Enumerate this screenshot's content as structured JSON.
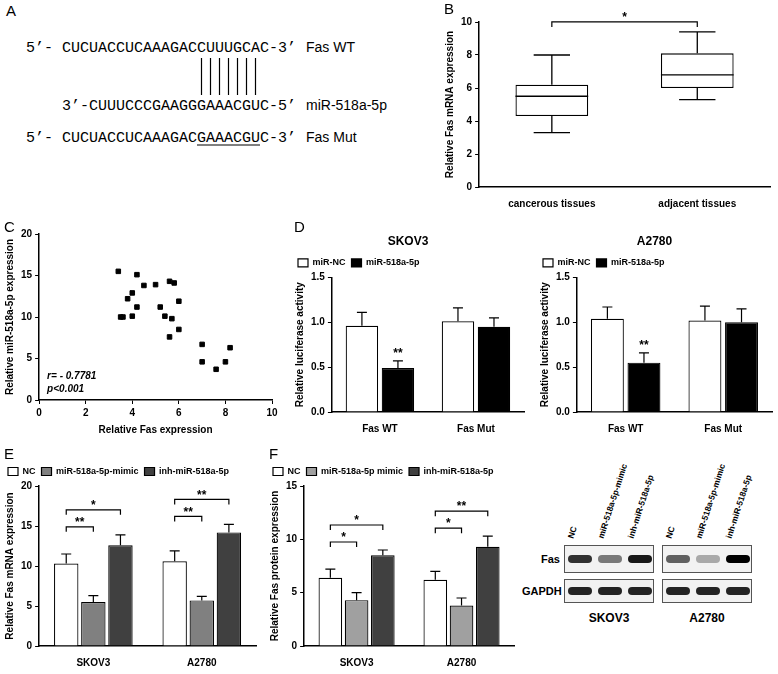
{
  "panel_a": {
    "panel": "A",
    "sequences": [
      {
        "text": "5’- CUCUACCUCAAAGACCUUUGCAC-3’",
        "label": "Fas WT"
      },
      {
        "text": "3’-CUUUCCCGAAGGGAAACGUC-5’",
        "label": "miR-518a-5p"
      },
      {
        "text": "5’- CUCUACCUCAAAGACGAAACGUC-3’",
        "label": "Fas Mut",
        "underlined": "GAAACGU"
      }
    ]
  },
  "chart_data": [
    {
      "panel": "B",
      "type": "box",
      "categories": [
        "cancerous tissues",
        "adjacent tissues"
      ],
      "boxes": [
        {
          "min": 3.3,
          "q1": 4.3,
          "median": 5.5,
          "q3": 6.2,
          "max": 8.0
        },
        {
          "min": 5.3,
          "q1": 6.0,
          "median": 6.8,
          "q3": 8.1,
          "max": 9.4
        }
      ],
      "color": "#ffffff",
      "y_label": "Relative Fas mRNA expression",
      "ylim": [
        0,
        10
      ],
      "yticks": [
        0,
        2,
        4,
        6,
        8,
        10
      ],
      "grid": false,
      "significance": [
        {
          "categories": [
            "cancerous tissues",
            "adjacent tissues"
          ],
          "label": "*"
        }
      ]
    },
    {
      "panel": "C",
      "type": "scatter",
      "x": [
        3.4,
        3.8,
        4.2,
        4.5,
        3.6,
        4.0,
        4.2,
        3.5,
        4.0,
        5.0,
        5.6,
        5.8,
        5.2,
        5.4,
        5.7,
        6.0,
        5.6,
        6.0,
        7.0,
        7.0,
        7.6,
        8.0,
        8.2
      ],
      "values": [
        15.5,
        12.2,
        15.1,
        13.8,
        10.0,
        12.9,
        11.2,
        10.0,
        10.1,
        13.9,
        14.3,
        14.1,
        11.2,
        10.1,
        9.8,
        11.9,
        7.6,
        8.5,
        6.7,
        4.6,
        3.7,
        4.6,
        6.3
      ],
      "color": "#000000",
      "marker": "square",
      "x_label": "Relative Fas expression",
      "y_label": "Relative miR-518a-5p expression",
      "xlim": [
        0,
        10
      ],
      "xticks": [
        0,
        2,
        4,
        6,
        8,
        10
      ],
      "ylim": [
        0,
        20
      ],
      "yticks": [
        0,
        5,
        10,
        15,
        20
      ],
      "grid": false,
      "annotations": [
        "r= - 0.7781",
        "p<0.001"
      ]
    },
    {
      "panel": "D",
      "type": "bar",
      "title": "SKOV3",
      "categories": [
        "Fas WT",
        "Fas Mut"
      ],
      "series": [
        {
          "name": "miR-NC",
          "color": "#ffffff",
          "values": [
            0.96,
            1.01
          ],
          "errors": [
            0.15,
            0.15
          ]
        },
        {
          "name": "miR-518a-5p",
          "color": "#000000",
          "values": [
            0.49,
            0.95
          ],
          "errors": [
            0.08,
            0.1
          ]
        }
      ],
      "y_label": "Relative luciferase activity",
      "ylim": [
        0,
        1.5
      ],
      "yticks": [
        {
          "value": 0,
          "label": "0.0"
        },
        0.5,
        {
          "value": 1,
          "label": "1.0"
        },
        1.5
      ],
      "grid": false,
      "legend": "top-left",
      "significance": [
        {
          "category": "Fas WT",
          "series": [
            "miR-518a-5p"
          ],
          "label": "**"
        }
      ]
    },
    {
      "type": "bar",
      "title": "A2780",
      "categories": [
        "Fas WT",
        "Fas Mut"
      ],
      "series": [
        {
          "name": "miR-NC",
          "color": "#ffffff",
          "values": [
            1.04,
            1.02
          ],
          "errors": [
            0.13,
            0.16
          ]
        },
        {
          "name": "miR-518a-5p",
          "color": "#000000",
          "values": [
            0.55,
            1.0
          ],
          "errors": [
            0.11,
            0.15
          ]
        }
      ],
      "y_label": "Relative luciferase activity",
      "ylim": [
        0,
        1.5
      ],
      "yticks": [
        {
          "value": 0,
          "label": "0.0"
        },
        0.5,
        {
          "value": 1,
          "label": "1.0"
        },
        1.5
      ],
      "grid": false,
      "legend": "top-left",
      "significance": [
        {
          "category": "Fas WT",
          "series": [
            "miR-518a-5p"
          ],
          "label": "**"
        }
      ]
    },
    {
      "panel": "E",
      "type": "bar",
      "categories": [
        "SKOV3",
        "A2780"
      ],
      "series": [
        {
          "name": "NC",
          "color": "#ffffff",
          "values": [
            10.3,
            10.6
          ],
          "errors": [
            1.2,
            1.3
          ]
        },
        {
          "name": "miR-518a-5p-mimic",
          "color": "#808080",
          "values": [
            5.5,
            5.7
          ],
          "errors": [
            0.8,
            0.5
          ]
        },
        {
          "name": "inh-miR-518a-5p",
          "color": "#404040",
          "values": [
            12.6,
            14.2
          ],
          "errors": [
            1.3,
            1.0
          ]
        }
      ],
      "y_label": "Relative Fas mRNA expression",
      "ylim": [
        0,
        20
      ],
      "yticks": [
        0,
        5,
        10,
        15,
        20
      ],
      "grid": false,
      "legend": "top-left",
      "significance": [
        {
          "category": "SKOV3",
          "series": [
            "NC",
            "miR-518a-5p-mimic"
          ],
          "label": "**"
        },
        {
          "category": "SKOV3",
          "series": [
            "NC",
            "inh-miR-518a-5p"
          ],
          "label": "*"
        },
        {
          "category": "A2780",
          "series": [
            "NC",
            "miR-518a-5p-mimic"
          ],
          "label": "**"
        },
        {
          "category": "A2780",
          "series": [
            "NC",
            "inh-miR-518a-5p"
          ],
          "label": "**"
        }
      ]
    },
    {
      "panel": "F",
      "type": "bar",
      "categories": [
        "SKOV3",
        "A2780"
      ],
      "series": [
        {
          "name": "NC",
          "color": "#ffffff",
          "values": [
            6.4,
            6.2
          ],
          "errors": [
            0.8,
            0.8
          ]
        },
        {
          "name": "miR-518a-5p mimic",
          "color": "#a0a0a0",
          "values": [
            4.3,
            3.8
          ],
          "errors": [
            0.7,
            0.7
          ]
        },
        {
          "name": "inh-miR-518a-5p",
          "color": "#404040",
          "values": [
            8.5,
            9.3
          ],
          "errors": [
            0.5,
            1.0
          ]
        }
      ],
      "y_label": "Relative Fas protein expression",
      "ylim": [
        0,
        15
      ],
      "yticks": [
        0,
        5,
        10,
        15
      ],
      "grid": false,
      "legend": "top-left",
      "significance": [
        {
          "category": "SKOV3",
          "series": [
            "NC",
            "miR-518a-5p mimic"
          ],
          "label": "*"
        },
        {
          "category": "SKOV3",
          "series": [
            "NC",
            "inh-miR-518a-5p"
          ],
          "label": "*"
        },
        {
          "category": "A2780",
          "series": [
            "NC",
            "miR-518a-5p mimic"
          ],
          "label": "*"
        },
        {
          "category": "A2780",
          "series": [
            "NC",
            "inh-miR-518a-5p"
          ],
          "label": "**"
        }
      ]
    }
  ],
  "blot": {
    "rows": [
      "Fas",
      "GAPDH"
    ],
    "panels": [
      {
        "cell_line": "SKOV3",
        "lanes": [
          "NC",
          "miR-518a-5p-mimic",
          "inh-miR-518a-5p"
        ],
        "band_intensity": [
          [
            0.8,
            0.5,
            0.9
          ],
          [
            0.85,
            0.85,
            0.85
          ]
        ]
      },
      {
        "cell_line": "A2780",
        "lanes": [
          "NC",
          "miR-518a-5p-mimic",
          "inh-miR-518a-5p"
        ],
        "band_intensity": [
          [
            0.6,
            0.3,
            1.0
          ],
          [
            0.85,
            0.85,
            0.85
          ]
        ]
      }
    ]
  }
}
